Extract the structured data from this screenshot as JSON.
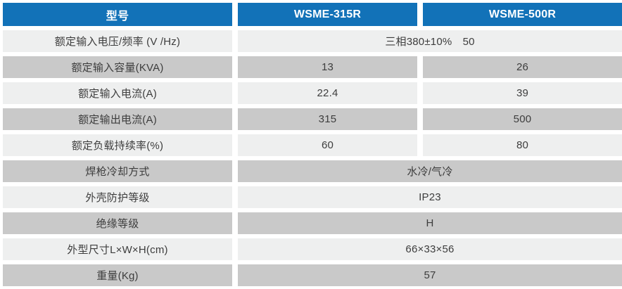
{
  "colors": {
    "header_bg": "#1272b8",
    "header_text": "#ffffff",
    "row_light": "#eeefef",
    "row_dark": "#c9c9c9",
    "text_color": "#3d3d3d"
  },
  "table": {
    "header": {
      "model_label": "型号",
      "models": [
        "WSME-315R",
        "WSME-500R"
      ]
    },
    "rows": [
      {
        "label": "额定输入电压/频率 (V /Hz)",
        "value": "三相380±10%　50"
      },
      {
        "label": "额定输入容量(KVA)",
        "value_315r": "13",
        "value_500r": "26"
      },
      {
        "label": "额定输入电流(A)",
        "value_315r": "22.4",
        "value_500r": "39"
      },
      {
        "label": "额定输出电流(A)",
        "value_315r": "315",
        "value_500r": "500"
      },
      {
        "label": "额定负载持续率(%)",
        "value_315r": "60",
        "value_500r": "80"
      },
      {
        "label": "焊枪冷却方式",
        "value": "水冷/气冷"
      },
      {
        "label": "外壳防护等级",
        "value": "IP23"
      },
      {
        "label": "绝缘等级",
        "value": "H"
      },
      {
        "label": "外型尺寸L×W×H(cm)",
        "value": "66×33×56"
      },
      {
        "label": "重量(Kg)",
        "value": "57"
      }
    ]
  }
}
